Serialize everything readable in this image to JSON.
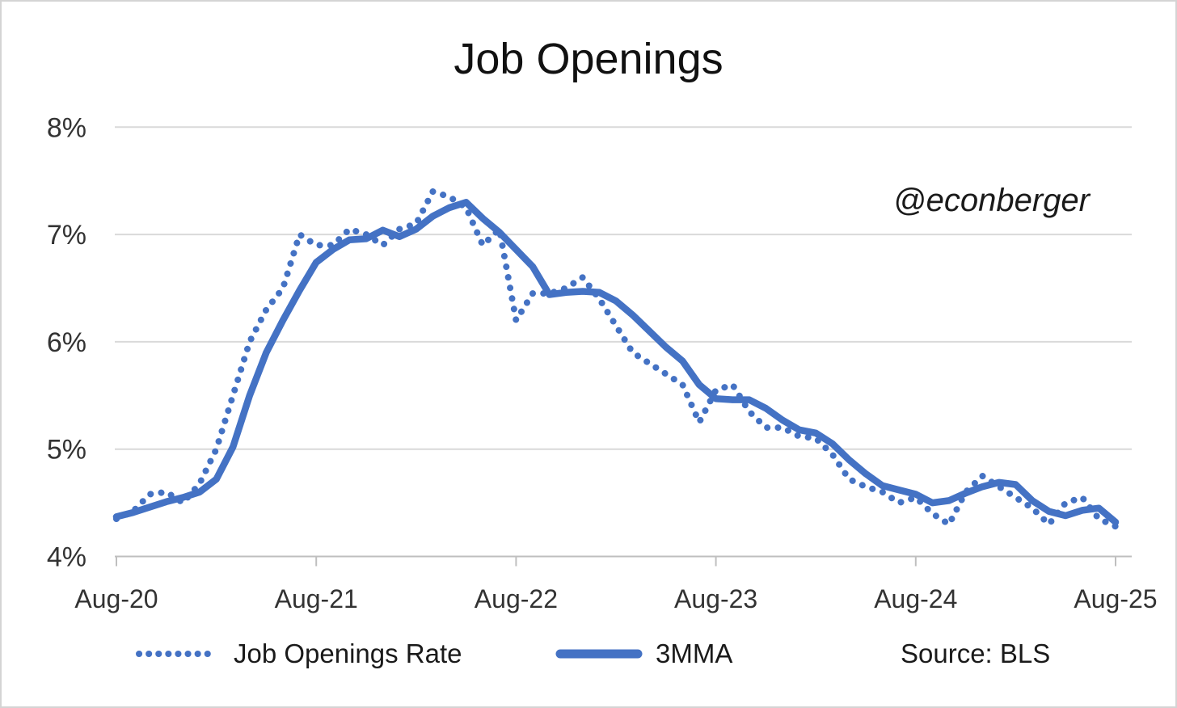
{
  "chart_data": {
    "type": "line",
    "title": "Job Openings",
    "watermark": "@econberger",
    "source_note": "Source: BLS",
    "x_tick_labels": [
      "Aug-20",
      "Aug-21",
      "Aug-22",
      "Aug-23",
      "Aug-24",
      "Aug-25"
    ],
    "y_tick_labels": [
      "4%",
      "5%",
      "6%",
      "7%",
      "8%"
    ],
    "y_tick_values": [
      4,
      5,
      6,
      7,
      8
    ],
    "ylim": [
      4,
      8
    ],
    "x_months_total": 61,
    "frequency": "monthly",
    "grid": "horizontal-only",
    "legend_position": "bottom",
    "colors": {
      "series_blue": "#4472C4",
      "gridline": "#D9D9D9",
      "axis_line": "#BFBFBF",
      "axis_text": "#333333",
      "title_text": "#111111"
    },
    "series": [
      {
        "name": "Job Openings Rate",
        "style": "dotted",
        "values": [
          4.35,
          4.42,
          4.58,
          4.6,
          4.5,
          4.68,
          5.0,
          5.5,
          6.0,
          6.3,
          6.5,
          7.0,
          6.9,
          6.9,
          7.05,
          7.0,
          6.9,
          7.05,
          7.1,
          7.4,
          7.35,
          7.25,
          6.9,
          7.05,
          6.2,
          6.45,
          6.45,
          6.5,
          6.6,
          6.4,
          6.15,
          5.9,
          5.8,
          5.7,
          5.6,
          5.25,
          5.55,
          5.6,
          5.35,
          5.2,
          5.2,
          5.12,
          5.1,
          4.95,
          4.72,
          4.65,
          4.6,
          4.5,
          4.55,
          4.4,
          4.3,
          4.6,
          4.75,
          4.65,
          4.55,
          4.45,
          4.3,
          4.5,
          4.55,
          4.35,
          4.28
        ]
      },
      {
        "name": "3MMA",
        "style": "solid",
        "values": [
          4.37,
          4.41,
          4.46,
          4.51,
          4.55,
          4.6,
          4.72,
          5.02,
          5.5,
          5.9,
          6.2,
          6.48,
          6.74,
          6.86,
          6.95,
          6.96,
          7.04,
          6.98,
          7.05,
          7.17,
          7.25,
          7.3,
          7.15,
          7.02,
          6.86,
          6.7,
          6.44,
          6.46,
          6.47,
          6.46,
          6.38,
          6.25,
          6.1,
          5.95,
          5.82,
          5.6,
          5.47,
          5.46,
          5.46,
          5.38,
          5.27,
          5.18,
          5.15,
          5.05,
          4.9,
          4.77,
          4.66,
          4.62,
          4.58,
          4.5,
          4.52,
          4.59,
          4.65,
          4.69,
          4.67,
          4.52,
          4.42,
          4.38,
          4.43,
          4.45,
          4.32
        ]
      }
    ]
  }
}
